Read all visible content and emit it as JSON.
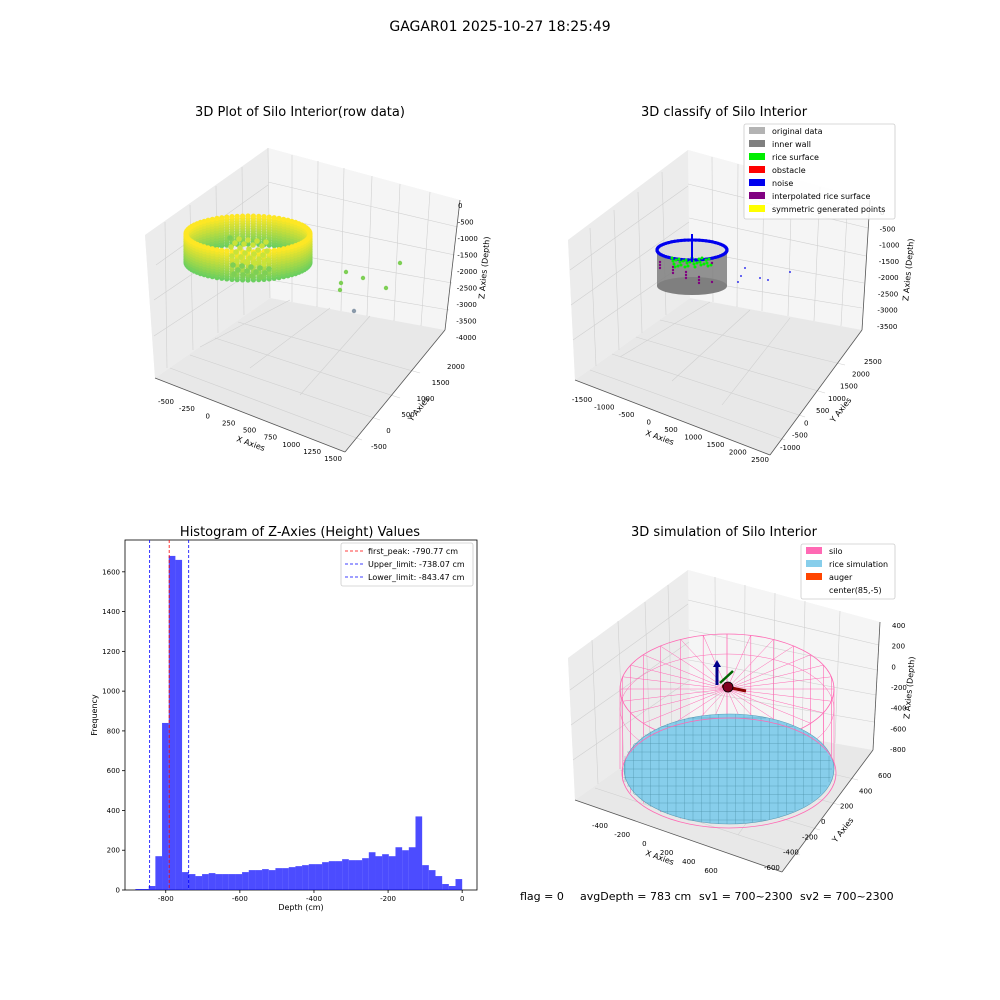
{
  "suptitle": "GAGAR01 2025-10-27 18:25:49",
  "footer": {
    "flag": "flag = 0",
    "avg_depth": "avgDepth = 783 cm",
    "sv1": "sv1 = 700~2300",
    "sv2": "sv2 = 700~2300"
  },
  "chart_data": [
    {
      "type": "scatter",
      "projection": "3d",
      "title": "3D Plot of Silo Interior(row data)",
      "xlabel": "X Axies",
      "ylabel": "Y Axies",
      "zlabel": "Z Axies (Depth)",
      "xticks": [
        "-500",
        "-250",
        "0",
        "250",
        "500",
        "750",
        "1000",
        "1250",
        "1500"
      ],
      "yticks": [
        "-500",
        "0",
        "500",
        "1000",
        "1500",
        "2000"
      ],
      "zticks": [
        "0",
        "-500",
        "-1000",
        "-1500",
        "-2000",
        "-2500",
        "-3000",
        "-3500",
        "-4000"
      ],
      "xlim": [
        -600,
        1500
      ],
      "ylim": [
        -600,
        2200
      ],
      "zlim": [
        -4100,
        100
      ],
      "colormap": "viridis (yellow-green)",
      "series": [
        {
          "shape": "ring of points (silo wall)",
          "center_x": 300,
          "center_y": 700,
          "radius": 550,
          "z_range": [
            -2100,
            -1300
          ]
        },
        {
          "shape": "scattered points",
          "points": [
            [
              1000,
              600,
              -1900
            ],
            [
              1250,
              500,
              -1950
            ],
            [
              900,
              200,
              -2050
            ],
            [
              1200,
              850,
              -2400
            ],
            [
              850,
              -150,
              -2300
            ],
            [
              1400,
              1300,
              -1800
            ],
            [
              800,
              -500,
              -3300
            ]
          ]
        }
      ],
      "grid": true
    },
    {
      "type": "scatter",
      "projection": "3d",
      "title": "3D classify of Silo Interior",
      "xlabel": "X Axies",
      "ylabel": "Y Axies",
      "zlabel": "Z Axies (Depth)",
      "xticks": [
        "-1500",
        "-1000",
        "-500",
        "0",
        "500",
        "1000",
        "1500",
        "2000",
        "2500"
      ],
      "yticks": [
        "-1000",
        "-500",
        "0",
        "500",
        "1000",
        "1500",
        "2000",
        "2500"
      ],
      "zticks": [
        "0",
        "-500",
        "-1000",
        "-1500",
        "-2000",
        "-2500",
        "-3000",
        "-3500"
      ],
      "legend": [
        {
          "label": "original data",
          "color": "#b3b3b3"
        },
        {
          "label": "inner wall",
          "color": "#7f7f7f"
        },
        {
          "label": "rice surface",
          "color": "#00ee00"
        },
        {
          "label": "obstacle",
          "color": "#ff0000"
        },
        {
          "label": "noise",
          "color": "#0000ee"
        },
        {
          "label": "interpolated rice surface",
          "color": "#800080"
        },
        {
          "label": "symmetric generated points",
          "color": "#ffff00"
        }
      ],
      "legend_loc": "upper right",
      "grid": true
    },
    {
      "type": "bar",
      "title": "Histogram of Z-Axies (Height) Values",
      "xlabel": "Depth (cm)",
      "ylabel": "Frequency",
      "color": "#0000ff",
      "xlim": [
        -910,
        40
      ],
      "ylim": [
        0,
        1760
      ],
      "xticks": [
        -800,
        -600,
        -400,
        -200,
        0
      ],
      "yticks": [
        0,
        200,
        400,
        600,
        800,
        1000,
        1200,
        1400,
        1600
      ],
      "bin_start": -882,
      "bin_width": 18,
      "values": [
        5,
        5,
        20,
        170,
        840,
        1680,
        1660,
        90,
        80,
        70,
        80,
        85,
        80,
        80,
        80,
        80,
        90,
        100,
        100,
        105,
        100,
        110,
        110,
        115,
        120,
        125,
        130,
        130,
        140,
        145,
        145,
        155,
        150,
        150,
        160,
        190,
        170,
        180,
        170,
        215,
        200,
        215,
        370,
        125,
        100,
        70,
        30,
        20,
        55
      ],
      "vlines": [
        {
          "label": "first_peak: -790.77 cm",
          "x": -790.77,
          "color": "#ff0000"
        },
        {
          "label": "Upper_limit: -738.07 cm",
          "x": -738.07,
          "color": "#0000ff"
        },
        {
          "label": "Lower_limit: -843.47 cm",
          "x": -843.47,
          "color": "#0000ff"
        }
      ],
      "legend_loc": "upper right"
    },
    {
      "type": "surface",
      "projection": "3d",
      "title": "3D simulation of Silo Interior",
      "xlabel": "X Axies",
      "ylabel": "Y Axies",
      "zlabel": "Z Axies (Depth)",
      "xticks": [
        "-400",
        "-200",
        "0",
        "200",
        "400",
        "600"
      ],
      "yticks": [
        "-600",
        "-400",
        "-200",
        "0",
        "200",
        "400",
        "600"
      ],
      "zticks": [
        "400",
        "200",
        "0",
        "-200",
        "-400",
        "-600",
        "-800"
      ],
      "legend": [
        {
          "label": "silo",
          "color": "#ff69b4"
        },
        {
          "label": "rice simulation",
          "color": "#87ceeb"
        },
        {
          "label": "auger",
          "color": "#ff4500"
        },
        {
          "label": "center(85,-5)",
          "color": ""
        }
      ],
      "legend_loc": "upper right",
      "grid": true
    }
  ]
}
